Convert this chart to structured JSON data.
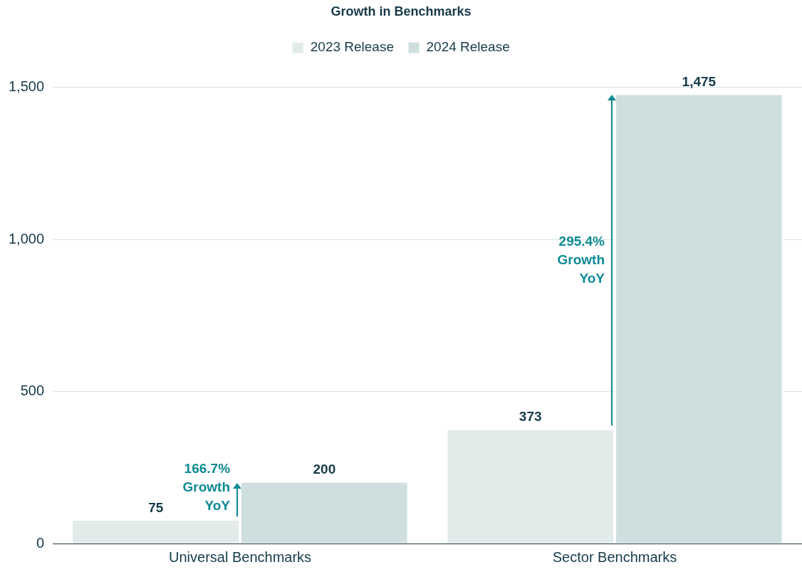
{
  "chart_data": {
    "type": "bar",
    "title": "Growth in Benchmarks",
    "categories": [
      "Universal Benchmarks",
      "Sector Benchmarks"
    ],
    "series": [
      {
        "name": "2023 Release",
        "color": "#e2eaea",
        "values": [
          75,
          373
        ]
      },
      {
        "name": "2024 Release",
        "color": "#cfdfdf",
        "values": [
          200,
          1475
        ]
      }
    ],
    "ylim": [
      0,
      1500
    ],
    "yticks": [
      0,
      {
        "value": 500,
        "label": "500"
      },
      {
        "value": 1000,
        "label": "1,000"
      },
      {
        "value": 1500,
        "label": "1,500"
      }
    ],
    "grid": "y",
    "legend": "top",
    "value_labels": [
      [
        "75",
        "373"
      ],
      [
        "200",
        "1,475"
      ]
    ],
    "annotations": [
      "166.7% Growth YoY",
      "295.4% Growth YoY"
    ]
  }
}
